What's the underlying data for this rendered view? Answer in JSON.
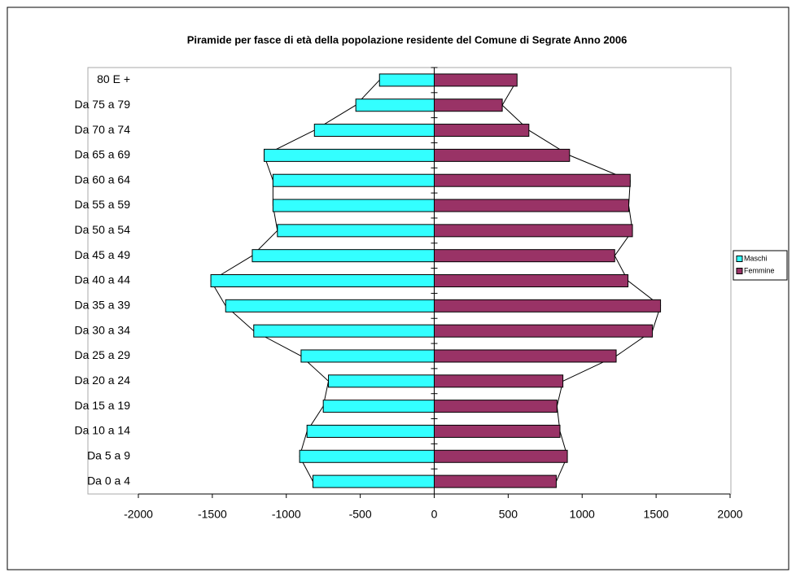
{
  "chart_data": {
    "type": "bar",
    "orientation": "horizontal",
    "title": "Piramide per fasce di età della popolazione residente del Comune di Segrate  Anno 2006",
    "categories": [
      "80 E +",
      "Da 75 a 79",
      "Da 70 a 74",
      "Da 65 a 69",
      "Da 60 a 64",
      "Da 55 a 59",
      "Da 50 a 54",
      "Da 45 a 49",
      "Da 40 a 44",
      "Da 35 a 39",
      "Da 30 a 34",
      "Da 25 a 29",
      "Da 20 a 24",
      "Da 15 a 19",
      "Da 10 a 14",
      "Da 5 a 9",
      "Da 0 a 4"
    ],
    "series": [
      {
        "name": "Maschi",
        "color": "#33ffff",
        "values": [
          -370,
          -530,
          -810,
          -1150,
          -1090,
          -1090,
          -1060,
          -1230,
          -1510,
          -1410,
          -1220,
          -900,
          -715,
          -750,
          -860,
          -910,
          -820
        ]
      },
      {
        "name": "Femmine",
        "color": "#993366",
        "values": [
          560,
          460,
          640,
          915,
          1325,
          1315,
          1340,
          1220,
          1310,
          1530,
          1475,
          1230,
          870,
          830,
          850,
          900,
          825
        ]
      }
    ],
    "xlim": [
      -2000,
      2000
    ],
    "xticks": [
      -2000,
      -1500,
      -1000,
      -500,
      0,
      500,
      1000,
      1500,
      2000
    ],
    "legend": "right"
  }
}
